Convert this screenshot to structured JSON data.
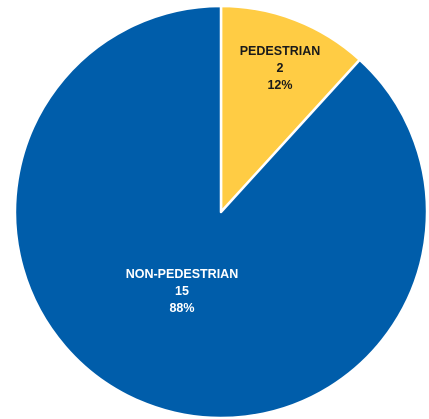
{
  "chart_data": {
    "type": "pie",
    "slices": [
      {
        "label": "PEDESTRIAN",
        "value": 2,
        "percent_label": "12%",
        "color": "#FFCC44",
        "label_color": "#1a1a1a"
      },
      {
        "label": "NON-PEDESTRIAN",
        "value": 15,
        "percent_label": "88%",
        "color": "#005DAA",
        "label_color": "#ffffff"
      }
    ],
    "start_angle_deg": 0,
    "direction": "clockwise",
    "legend": "none"
  }
}
